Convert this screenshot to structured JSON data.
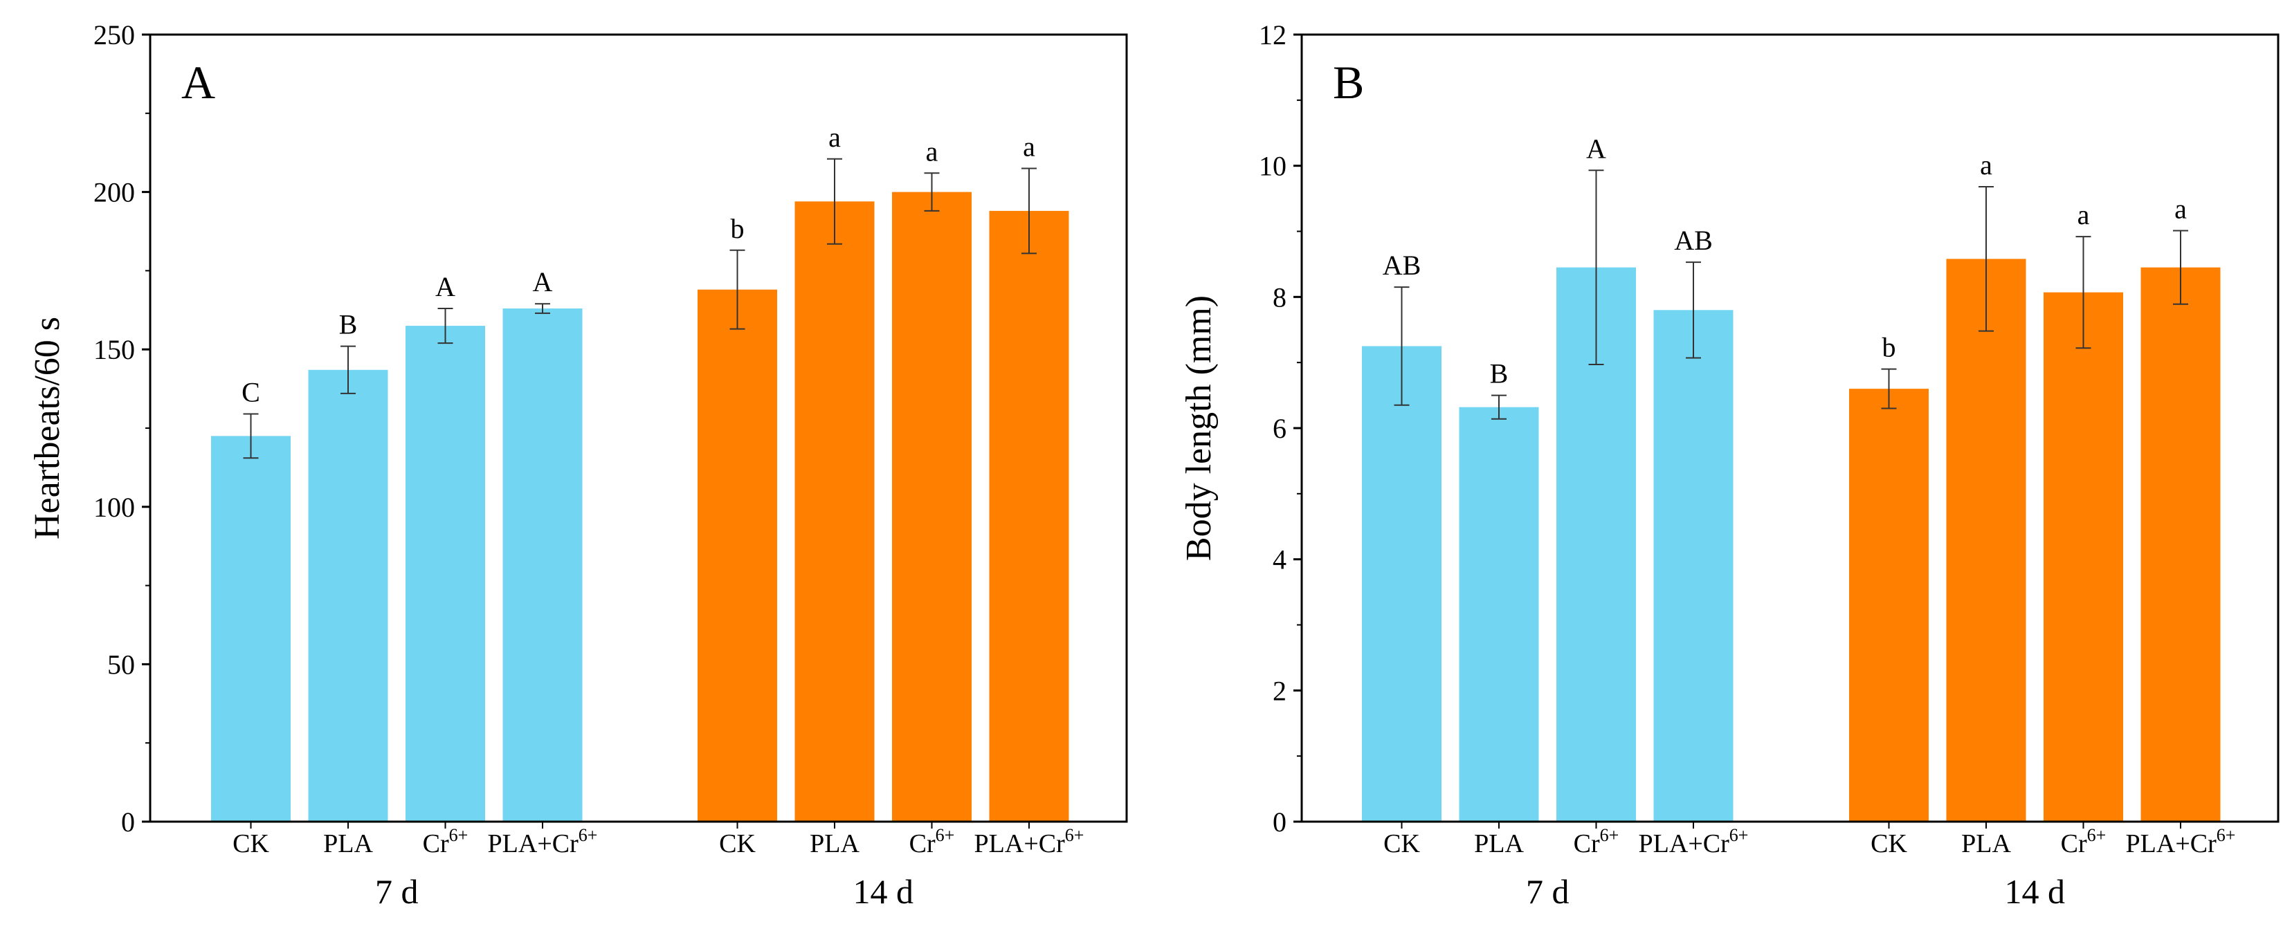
{
  "chart_data": [
    {
      "type": "bar",
      "panel_label": "A",
      "ylabel": "Heartbeats/60 s",
      "ylim": [
        0,
        250
      ],
      "yticks": [
        0,
        50,
        100,
        150,
        200,
        250
      ],
      "groups": [
        {
          "name": "7 d",
          "color": "#72d5f2",
          "categories": [
            "CK",
            "PLA",
            "Cr6+",
            "PLA+Cr6+"
          ],
          "values": [
            122.5,
            143.5,
            157.5,
            163
          ],
          "errors": [
            7,
            7.5,
            5.5,
            1.5
          ],
          "letters": [
            "C",
            "B",
            "A",
            "A"
          ]
        },
        {
          "name": "14 d",
          "color": "#ff8000",
          "categories": [
            "CK",
            "PLA",
            "Cr6+",
            "PLA+Cr6+"
          ],
          "values": [
            169,
            197,
            200,
            194
          ],
          "errors": [
            12.5,
            13.5,
            6,
            13.5
          ],
          "letters": [
            "b",
            "a",
            "a",
            "a"
          ]
        }
      ]
    },
    {
      "type": "bar",
      "panel_label": "B",
      "ylabel": "Body length (mm)",
      "ylim": [
        0,
        12
      ],
      "yticks": [
        0,
        2,
        4,
        6,
        8,
        10,
        12
      ],
      "groups": [
        {
          "name": "7 d",
          "color": "#72d5f2",
          "categories": [
            "CK",
            "PLA",
            "Cr6+",
            "PLA+Cr6+"
          ],
          "values": [
            7.25,
            6.32,
            8.45,
            7.8
          ],
          "errors": [
            0.9,
            0.18,
            1.48,
            0.73
          ],
          "letters": [
            "AB",
            "B",
            "A",
            "AB"
          ]
        },
        {
          "name": "14 d",
          "color": "#ff8000",
          "categories": [
            "CK",
            "PLA",
            "Cr6+",
            "PLA+Cr6+"
          ],
          "values": [
            6.6,
            8.58,
            8.07,
            8.45
          ],
          "errors": [
            0.3,
            1.1,
            0.85,
            0.56
          ],
          "letters": [
            "b",
            "a",
            "a",
            "a"
          ]
        }
      ]
    }
  ]
}
